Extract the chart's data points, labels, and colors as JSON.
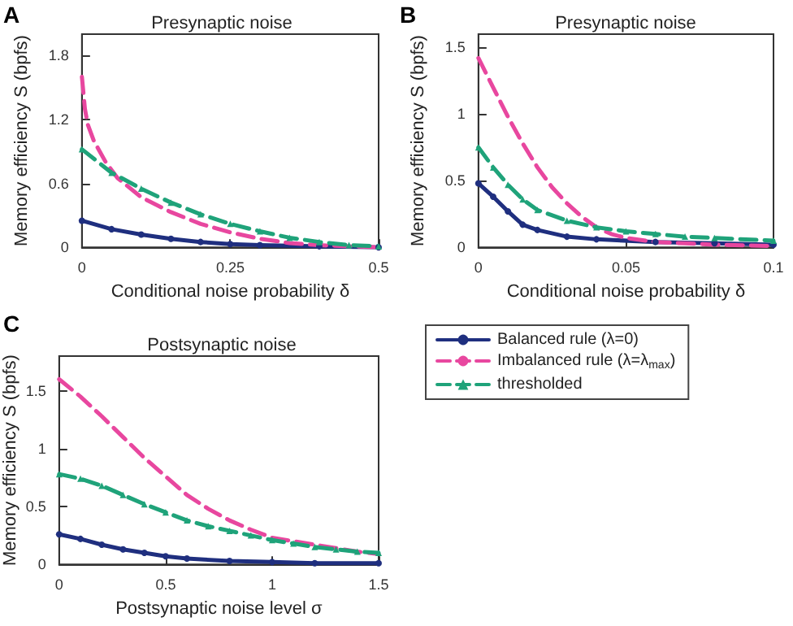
{
  "chart_data": [
    {
      "type": "line",
      "title": "Presynaptic noise",
      "xlabel": "Conditional noise probability δ",
      "ylabel": "Memory efficiency S (bpfs)",
      "annotations": [
        "A"
      ],
      "xlim": [
        0,
        0.5
      ],
      "xticks": [
        0,
        0.25,
        0.5
      ],
      "ylim": [
        0,
        2
      ],
      "yticks": [
        0,
        0.6,
        1.2,
        1.8
      ],
      "grid": false,
      "legend": false,
      "series": [
        {
          "color": "#1f2f7f",
          "marker": "circle",
          "line_style": "solid",
          "x": [
            0,
            0.05,
            0.1,
            0.15,
            0.2,
            0.25,
            0.3,
            0.4,
            0.5
          ],
          "values": [
            0.25,
            0.17,
            0.12,
            0.08,
            0.05,
            0.03,
            0.02,
            0.01,
            0
          ]
        },
        {
          "color": "#e8479f",
          "marker": "none",
          "line_style": "dashed",
          "x": [
            0,
            0.005,
            0.01,
            0.02,
            0.04,
            0.06,
            0.1,
            0.15,
            0.2,
            0.25,
            0.3,
            0.35,
            0.4,
            0.5
          ],
          "values": [
            1.6,
            1.3,
            1.15,
            1.0,
            0.8,
            0.65,
            0.47,
            0.33,
            0.22,
            0.14,
            0.08,
            0.04,
            0.02,
            0
          ]
        },
        {
          "color": "#1fa37a",
          "marker": "triangle",
          "line_style": "dashed",
          "x": [
            0,
            0.05,
            0.1,
            0.15,
            0.2,
            0.25,
            0.3,
            0.35,
            0.4,
            0.45,
            0.5
          ],
          "values": [
            0.92,
            0.7,
            0.55,
            0.42,
            0.31,
            0.22,
            0.15,
            0.09,
            0.05,
            0.02,
            0.01
          ]
        }
      ]
    },
    {
      "type": "line",
      "title": "Presynaptic noise",
      "xlabel": "Conditional noise probability δ",
      "ylabel": "Memory efficiency S (bpfs)",
      "annotations": [
        "B"
      ],
      "xlim": [
        0,
        0.1
      ],
      "xticks": [
        0,
        0.05,
        0.1
      ],
      "ylim": [
        0,
        1.6
      ],
      "yticks": [
        0,
        0.5,
        1,
        1.5
      ],
      "grid": false,
      "legend": false,
      "series": [
        {
          "color": "#1f2f7f",
          "marker": "circle",
          "line_style": "solid",
          "x": [
            0,
            0.005,
            0.01,
            0.015,
            0.02,
            0.03,
            0.04,
            0.06,
            0.08,
            0.1
          ],
          "values": [
            0.48,
            0.38,
            0.27,
            0.17,
            0.13,
            0.08,
            0.06,
            0.04,
            0.03,
            0.02
          ]
        },
        {
          "color": "#e8479f",
          "marker": "none",
          "line_style": "dashed",
          "x": [
            0,
            0.005,
            0.01,
            0.015,
            0.02,
            0.025,
            0.03,
            0.035,
            0.04,
            0.045,
            0.05,
            0.06,
            0.07,
            0.08,
            0.1
          ],
          "values": [
            1.42,
            1.2,
            0.98,
            0.78,
            0.6,
            0.45,
            0.33,
            0.23,
            0.15,
            0.1,
            0.07,
            0.04,
            0.03,
            0.02,
            0.01
          ]
        },
        {
          "color": "#1fa37a",
          "marker": "triangle",
          "line_style": "dashed",
          "x": [
            0,
            0.005,
            0.01,
            0.015,
            0.02,
            0.03,
            0.04,
            0.05,
            0.06,
            0.07,
            0.08,
            0.1
          ],
          "values": [
            0.75,
            0.6,
            0.47,
            0.36,
            0.28,
            0.2,
            0.15,
            0.12,
            0.1,
            0.08,
            0.07,
            0.05
          ]
        }
      ]
    },
    {
      "type": "line",
      "title": "Postsynaptic noise",
      "xlabel": "Postsynaptic noise level σ",
      "ylabel": "Memory efficiency S (bpfs)",
      "annotations": [
        "C"
      ],
      "xlim": [
        0,
        1.5
      ],
      "xticks": [
        0,
        0.5,
        1,
        1.5
      ],
      "ylim": [
        0,
        1.8
      ],
      "yticks": [
        0,
        0.5,
        1,
        1.5
      ],
      "grid": false,
      "legend": "right",
      "series": [
        {
          "name": "Balanced rule (λ=0)",
          "color": "#1f2f7f",
          "marker": "circle",
          "line_style": "solid",
          "x": [
            0,
            0.1,
            0.2,
            0.3,
            0.4,
            0.5,
            0.6,
            0.8,
            1,
            1.2,
            1.5
          ],
          "values": [
            0.26,
            0.22,
            0.17,
            0.13,
            0.1,
            0.07,
            0.05,
            0.03,
            0.02,
            0.01,
            0.01
          ]
        },
        {
          "name": "Imbalanced rule (λ=λ$_{max}$)",
          "color": "#e8479f",
          "marker": "none",
          "line_style": "dashed",
          "x": [
            0,
            0.1,
            0.2,
            0.3,
            0.4,
            0.5,
            0.6,
            0.7,
            0.8,
            0.9,
            1.0,
            1.1,
            1.2,
            1.3,
            1.4,
            1.5
          ],
          "values": [
            1.6,
            1.45,
            1.28,
            1.1,
            0.92,
            0.76,
            0.6,
            0.48,
            0.38,
            0.3,
            0.23,
            0.2,
            0.17,
            0.14,
            0.11,
            0.09
          ]
        },
        {
          "name": "thresholded",
          "color": "#1fa37a",
          "marker": "triangle",
          "line_style": "dashed",
          "x": [
            0,
            0.1,
            0.2,
            0.3,
            0.4,
            0.5,
            0.6,
            0.7,
            0.8,
            0.9,
            1.0,
            1.1,
            1.2,
            1.3,
            1.4,
            1.5
          ],
          "values": [
            0.78,
            0.74,
            0.68,
            0.6,
            0.52,
            0.45,
            0.38,
            0.33,
            0.29,
            0.25,
            0.21,
            0.18,
            0.15,
            0.13,
            0.11,
            0.1
          ]
        }
      ]
    }
  ]
}
